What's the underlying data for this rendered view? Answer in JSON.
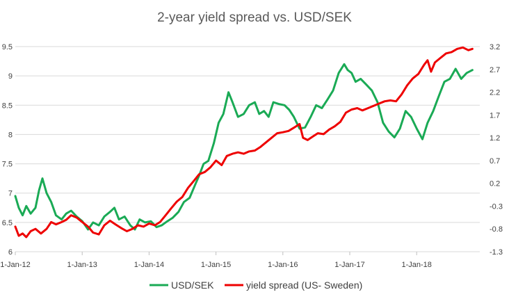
{
  "chart_data": {
    "type": "line",
    "title": "2-year yield spread vs. USD/SEK",
    "xlabel": "",
    "ylabel": "",
    "x_ticks": [
      "1-Jan-12",
      "1-Jan-13",
      "1-Jan-14",
      "1-Jan-15",
      "1-Jan-16",
      "1-Jan-17",
      "1-Jan-18"
    ],
    "y_left": {
      "min": 6,
      "max": 9.5,
      "ticks": [
        "6",
        "6.5",
        "7",
        "7.5",
        "8",
        "8.5",
        "9",
        "9.5"
      ]
    },
    "y_right": {
      "min": -1.3,
      "max": 3.2,
      "ticks": [
        "-1.3",
        "-0.8",
        "-0.3",
        "0.2",
        "0.7",
        "1.2",
        "1.7",
        "2.2",
        "2.7",
        "3.2"
      ]
    },
    "grid": "horizontal",
    "legend_position": "bottom",
    "series": [
      {
        "name": "USD/SEK",
        "axis": "left",
        "color": "#1aaa55",
        "points": [
          [
            "2012-01-01",
            6.95
          ],
          [
            "2012-01-20",
            6.75
          ],
          [
            "2012-02-10",
            6.62
          ],
          [
            "2012-03-01",
            6.78
          ],
          [
            "2012-03-25",
            6.65
          ],
          [
            "2012-04-20",
            6.75
          ],
          [
            "2012-05-10",
            7.05
          ],
          [
            "2012-05-28",
            7.25
          ],
          [
            "2012-06-20",
            7.0
          ],
          [
            "2012-07-15",
            6.85
          ],
          [
            "2012-08-10",
            6.62
          ],
          [
            "2012-09-10",
            6.55
          ],
          [
            "2012-10-05",
            6.65
          ],
          [
            "2012-11-01",
            6.7
          ],
          [
            "2012-12-01",
            6.6
          ],
          [
            "2013-01-01",
            6.52
          ],
          [
            "2013-02-01",
            6.38
          ],
          [
            "2013-03-01",
            6.5
          ],
          [
            "2013-04-01",
            6.45
          ],
          [
            "2013-05-01",
            6.6
          ],
          [
            "2013-06-01",
            6.68
          ],
          [
            "2013-06-25",
            6.75
          ],
          [
            "2013-07-20",
            6.55
          ],
          [
            "2013-08-20",
            6.6
          ],
          [
            "2013-09-20",
            6.45
          ],
          [
            "2013-10-15",
            6.38
          ],
          [
            "2013-11-10",
            6.55
          ],
          [
            "2013-12-10",
            6.5
          ],
          [
            "2014-01-10",
            6.52
          ],
          [
            "2014-02-10",
            6.42
          ],
          [
            "2014-03-10",
            6.45
          ],
          [
            "2014-04-10",
            6.52
          ],
          [
            "2014-05-10",
            6.58
          ],
          [
            "2014-06-10",
            6.68
          ],
          [
            "2014-07-10",
            6.85
          ],
          [
            "2014-08-10",
            6.92
          ],
          [
            "2014-09-10",
            7.15
          ],
          [
            "2014-10-01",
            7.3
          ],
          [
            "2014-10-25",
            7.5
          ],
          [
            "2014-11-20",
            7.55
          ],
          [
            "2014-12-20",
            7.85
          ],
          [
            "2015-01-15",
            8.2
          ],
          [
            "2015-02-10",
            8.35
          ],
          [
            "2015-03-10",
            8.72
          ],
          [
            "2015-04-01",
            8.55
          ],
          [
            "2015-05-01",
            8.3
          ],
          [
            "2015-06-01",
            8.35
          ],
          [
            "2015-07-01",
            8.5
          ],
          [
            "2015-08-01",
            8.55
          ],
          [
            "2015-08-25",
            8.35
          ],
          [
            "2015-09-20",
            8.4
          ],
          [
            "2015-10-15",
            8.3
          ],
          [
            "2015-11-10",
            8.55
          ],
          [
            "2015-12-10",
            8.52
          ],
          [
            "2016-01-10",
            8.5
          ],
          [
            "2016-02-05",
            8.42
          ],
          [
            "2016-03-01",
            8.3
          ],
          [
            "2016-04-01",
            8.1
          ],
          [
            "2016-05-01",
            8.12
          ],
          [
            "2016-06-01",
            8.3
          ],
          [
            "2016-07-01",
            8.5
          ],
          [
            "2016-08-01",
            8.45
          ],
          [
            "2016-09-01",
            8.6
          ],
          [
            "2016-10-01",
            8.75
          ],
          [
            "2016-11-01",
            9.05
          ],
          [
            "2016-12-01",
            9.2
          ],
          [
            "2016-12-20",
            9.1
          ],
          [
            "2017-01-10",
            9.05
          ],
          [
            "2017-02-01",
            8.9
          ],
          [
            "2017-03-01",
            8.95
          ],
          [
            "2017-04-01",
            8.85
          ],
          [
            "2017-05-01",
            8.75
          ],
          [
            "2017-06-01",
            8.55
          ],
          [
            "2017-07-01",
            8.2
          ],
          [
            "2017-08-01",
            8.05
          ],
          [
            "2017-09-01",
            7.95
          ],
          [
            "2017-10-01",
            8.1
          ],
          [
            "2017-11-01",
            8.4
          ],
          [
            "2017-12-01",
            8.3
          ],
          [
            "2018-01-01",
            8.1
          ],
          [
            "2018-02-01",
            7.92
          ],
          [
            "2018-03-01",
            8.2
          ],
          [
            "2018-04-01",
            8.4
          ],
          [
            "2018-05-01",
            8.65
          ],
          [
            "2018-06-01",
            8.9
          ],
          [
            "2018-07-01",
            8.95
          ],
          [
            "2018-08-01",
            9.12
          ],
          [
            "2018-09-01",
            8.95
          ],
          [
            "2018-10-01",
            9.05
          ],
          [
            "2018-11-01",
            9.1
          ]
        ]
      },
      {
        "name": "yield spread (US- Sweden)",
        "axis": "right",
        "color": "#ee0000",
        "points": [
          [
            "2012-01-01",
            -0.75
          ],
          [
            "2012-01-20",
            -0.95
          ],
          [
            "2012-02-10",
            -0.9
          ],
          [
            "2012-03-01",
            -0.98
          ],
          [
            "2012-03-25",
            -0.85
          ],
          [
            "2012-04-20",
            -0.8
          ],
          [
            "2012-05-20",
            -0.9
          ],
          [
            "2012-06-20",
            -0.8
          ],
          [
            "2012-07-15",
            -0.65
          ],
          [
            "2012-08-10",
            -0.7
          ],
          [
            "2012-09-10",
            -0.65
          ],
          [
            "2012-10-05",
            -0.6
          ],
          [
            "2012-11-01",
            -0.5
          ],
          [
            "2012-12-01",
            -0.55
          ],
          [
            "2013-01-01",
            -0.65
          ],
          [
            "2013-02-01",
            -0.75
          ],
          [
            "2013-03-01",
            -0.88
          ],
          [
            "2013-04-01",
            -0.92
          ],
          [
            "2013-05-01",
            -0.72
          ],
          [
            "2013-06-01",
            -0.62
          ],
          [
            "2013-07-01",
            -0.7
          ],
          [
            "2013-08-01",
            -0.78
          ],
          [
            "2013-09-01",
            -0.85
          ],
          [
            "2013-10-01",
            -0.8
          ],
          [
            "2013-11-01",
            -0.72
          ],
          [
            "2013-12-01",
            -0.75
          ],
          [
            "2014-01-01",
            -0.68
          ],
          [
            "2014-02-01",
            -0.72
          ],
          [
            "2014-03-01",
            -0.65
          ],
          [
            "2014-04-01",
            -0.5
          ],
          [
            "2014-05-01",
            -0.35
          ],
          [
            "2014-06-01",
            -0.2
          ],
          [
            "2014-07-01",
            -0.1
          ],
          [
            "2014-08-01",
            0.1
          ],
          [
            "2014-09-01",
            0.25
          ],
          [
            "2014-10-01",
            0.4
          ],
          [
            "2014-11-01",
            0.45
          ],
          [
            "2014-12-01",
            0.55
          ],
          [
            "2015-01-01",
            0.7
          ],
          [
            "2015-02-01",
            0.6
          ],
          [
            "2015-03-01",
            0.8
          ],
          [
            "2015-04-01",
            0.85
          ],
          [
            "2015-05-01",
            0.88
          ],
          [
            "2015-06-01",
            0.85
          ],
          [
            "2015-07-01",
            0.9
          ],
          [
            "2015-08-01",
            0.92
          ],
          [
            "2015-09-01",
            1.0
          ],
          [
            "2015-10-01",
            1.1
          ],
          [
            "2015-11-01",
            1.2
          ],
          [
            "2015-12-01",
            1.3
          ],
          [
            "2016-01-01",
            1.32
          ],
          [
            "2016-02-01",
            1.35
          ],
          [
            "2016-03-01",
            1.42
          ],
          [
            "2016-04-01",
            1.5
          ],
          [
            "2016-04-20",
            1.2
          ],
          [
            "2016-05-15",
            1.15
          ],
          [
            "2016-06-10",
            1.22
          ],
          [
            "2016-07-10",
            1.3
          ],
          [
            "2016-08-10",
            1.28
          ],
          [
            "2016-09-10",
            1.38
          ],
          [
            "2016-10-10",
            1.45
          ],
          [
            "2016-11-10",
            1.55
          ],
          [
            "2016-12-10",
            1.75
          ],
          [
            "2017-01-10",
            1.82
          ],
          [
            "2017-02-10",
            1.85
          ],
          [
            "2017-03-10",
            1.8
          ],
          [
            "2017-04-10",
            1.85
          ],
          [
            "2017-05-10",
            1.9
          ],
          [
            "2017-06-10",
            1.95
          ],
          [
            "2017-07-10",
            2.0
          ],
          [
            "2017-08-10",
            2.02
          ],
          [
            "2017-09-10",
            2.0
          ],
          [
            "2017-10-10",
            2.15
          ],
          [
            "2017-11-10",
            2.35
          ],
          [
            "2017-12-10",
            2.5
          ],
          [
            "2018-01-10",
            2.6
          ],
          [
            "2018-02-10",
            2.8
          ],
          [
            "2018-03-01",
            2.9
          ],
          [
            "2018-03-20",
            2.65
          ],
          [
            "2018-04-10",
            2.85
          ],
          [
            "2018-05-10",
            2.95
          ],
          [
            "2018-06-10",
            3.05
          ],
          [
            "2018-07-10",
            3.08
          ],
          [
            "2018-08-10",
            3.15
          ],
          [
            "2018-09-10",
            3.18
          ],
          [
            "2018-10-10",
            3.12
          ],
          [
            "2018-11-01",
            3.15
          ]
        ]
      }
    ]
  }
}
